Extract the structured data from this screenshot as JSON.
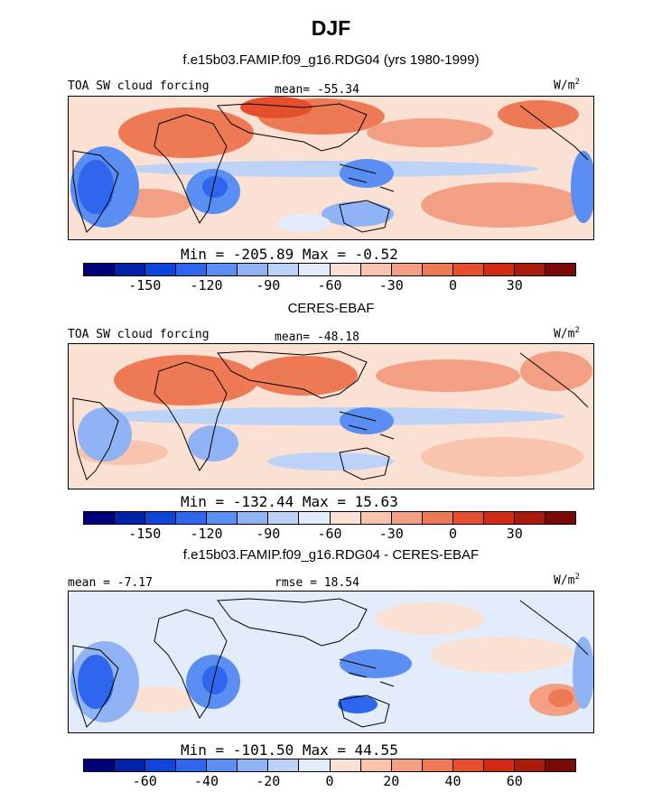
{
  "figure": {
    "title": "DJF",
    "colors": [
      "#00007a",
      "#0022a8",
      "#0d44d9",
      "#2e66ee",
      "#5b8ef2",
      "#8fb3f5",
      "#bcd3f7",
      "#e3ecfa",
      "#fbe0d4",
      "#f8c4ad",
      "#f39f83",
      "#ee7a55",
      "#e64f2e",
      "#d12a14",
      "#a9190c",
      "#7a0a05"
    ]
  },
  "panels": [
    {
      "subtitle": "f.e15b03.FAMIP.f09_g16.RDG04 (yrs 1980-1999)",
      "left_label": "TOA SW cloud forcing",
      "center_label": "mean= -55.34",
      "units_base": "W/m",
      "units_sup": "2",
      "minmax": "Min = -205.89 Max =  -0.52",
      "colorbar_ticks": [
        "-150",
        "-120",
        "-90",
        "-60",
        "-30",
        "0",
        "30"
      ]
    },
    {
      "subtitle": "CERES-EBAF",
      "left_label": "TOA SW cloud forcing",
      "center_label": "mean= -48.18",
      "units_base": "W/m",
      "units_sup": "2",
      "minmax": "Min = -132.44 Max =  15.63",
      "colorbar_ticks": [
        "-150",
        "-120",
        "-90",
        "-60",
        "-30",
        "0",
        "30"
      ]
    },
    {
      "subtitle": "f.e15b03.FAMIP.f09_g16.RDG04 - CERES-EBAF",
      "left_label": "mean = -7.17",
      "center_label": "rmse = 18.54",
      "units_base": "W/m",
      "units_sup": "2",
      "minmax": "Min = -101.50 Max =  44.55",
      "colorbar_ticks": [
        "-60",
        "-40",
        "-20",
        "0",
        "20",
        "40",
        "60"
      ]
    }
  ],
  "chart_data": [
    {
      "type": "heatmap",
      "title": "f.e15b03.FAMIP.f09_g16.RDG04 (yrs 1980-1999)",
      "variable": "TOA SW cloud forcing",
      "units": "W/m2",
      "season": "DJF",
      "mean": -55.34,
      "min": -205.89,
      "max": -0.52,
      "colorbar_ticks": [
        -150,
        -120,
        -90,
        -60,
        -30,
        0,
        30
      ]
    },
    {
      "type": "heatmap",
      "title": "CERES-EBAF",
      "variable": "TOA SW cloud forcing",
      "units": "W/m2",
      "season": "DJF",
      "mean": -48.18,
      "min": -132.44,
      "max": 15.63,
      "colorbar_ticks": [
        -150,
        -120,
        -90,
        -60,
        -30,
        0,
        30
      ]
    },
    {
      "type": "heatmap",
      "title": "f.e15b03.FAMIP.f09_g16.RDG04 - CERES-EBAF",
      "units": "W/m2",
      "season": "DJF",
      "mean": -7.17,
      "rmse": 18.54,
      "min": -101.5,
      "max": 44.55,
      "colorbar_ticks": [
        -60,
        -40,
        -20,
        0,
        20,
        40,
        60
      ]
    }
  ]
}
